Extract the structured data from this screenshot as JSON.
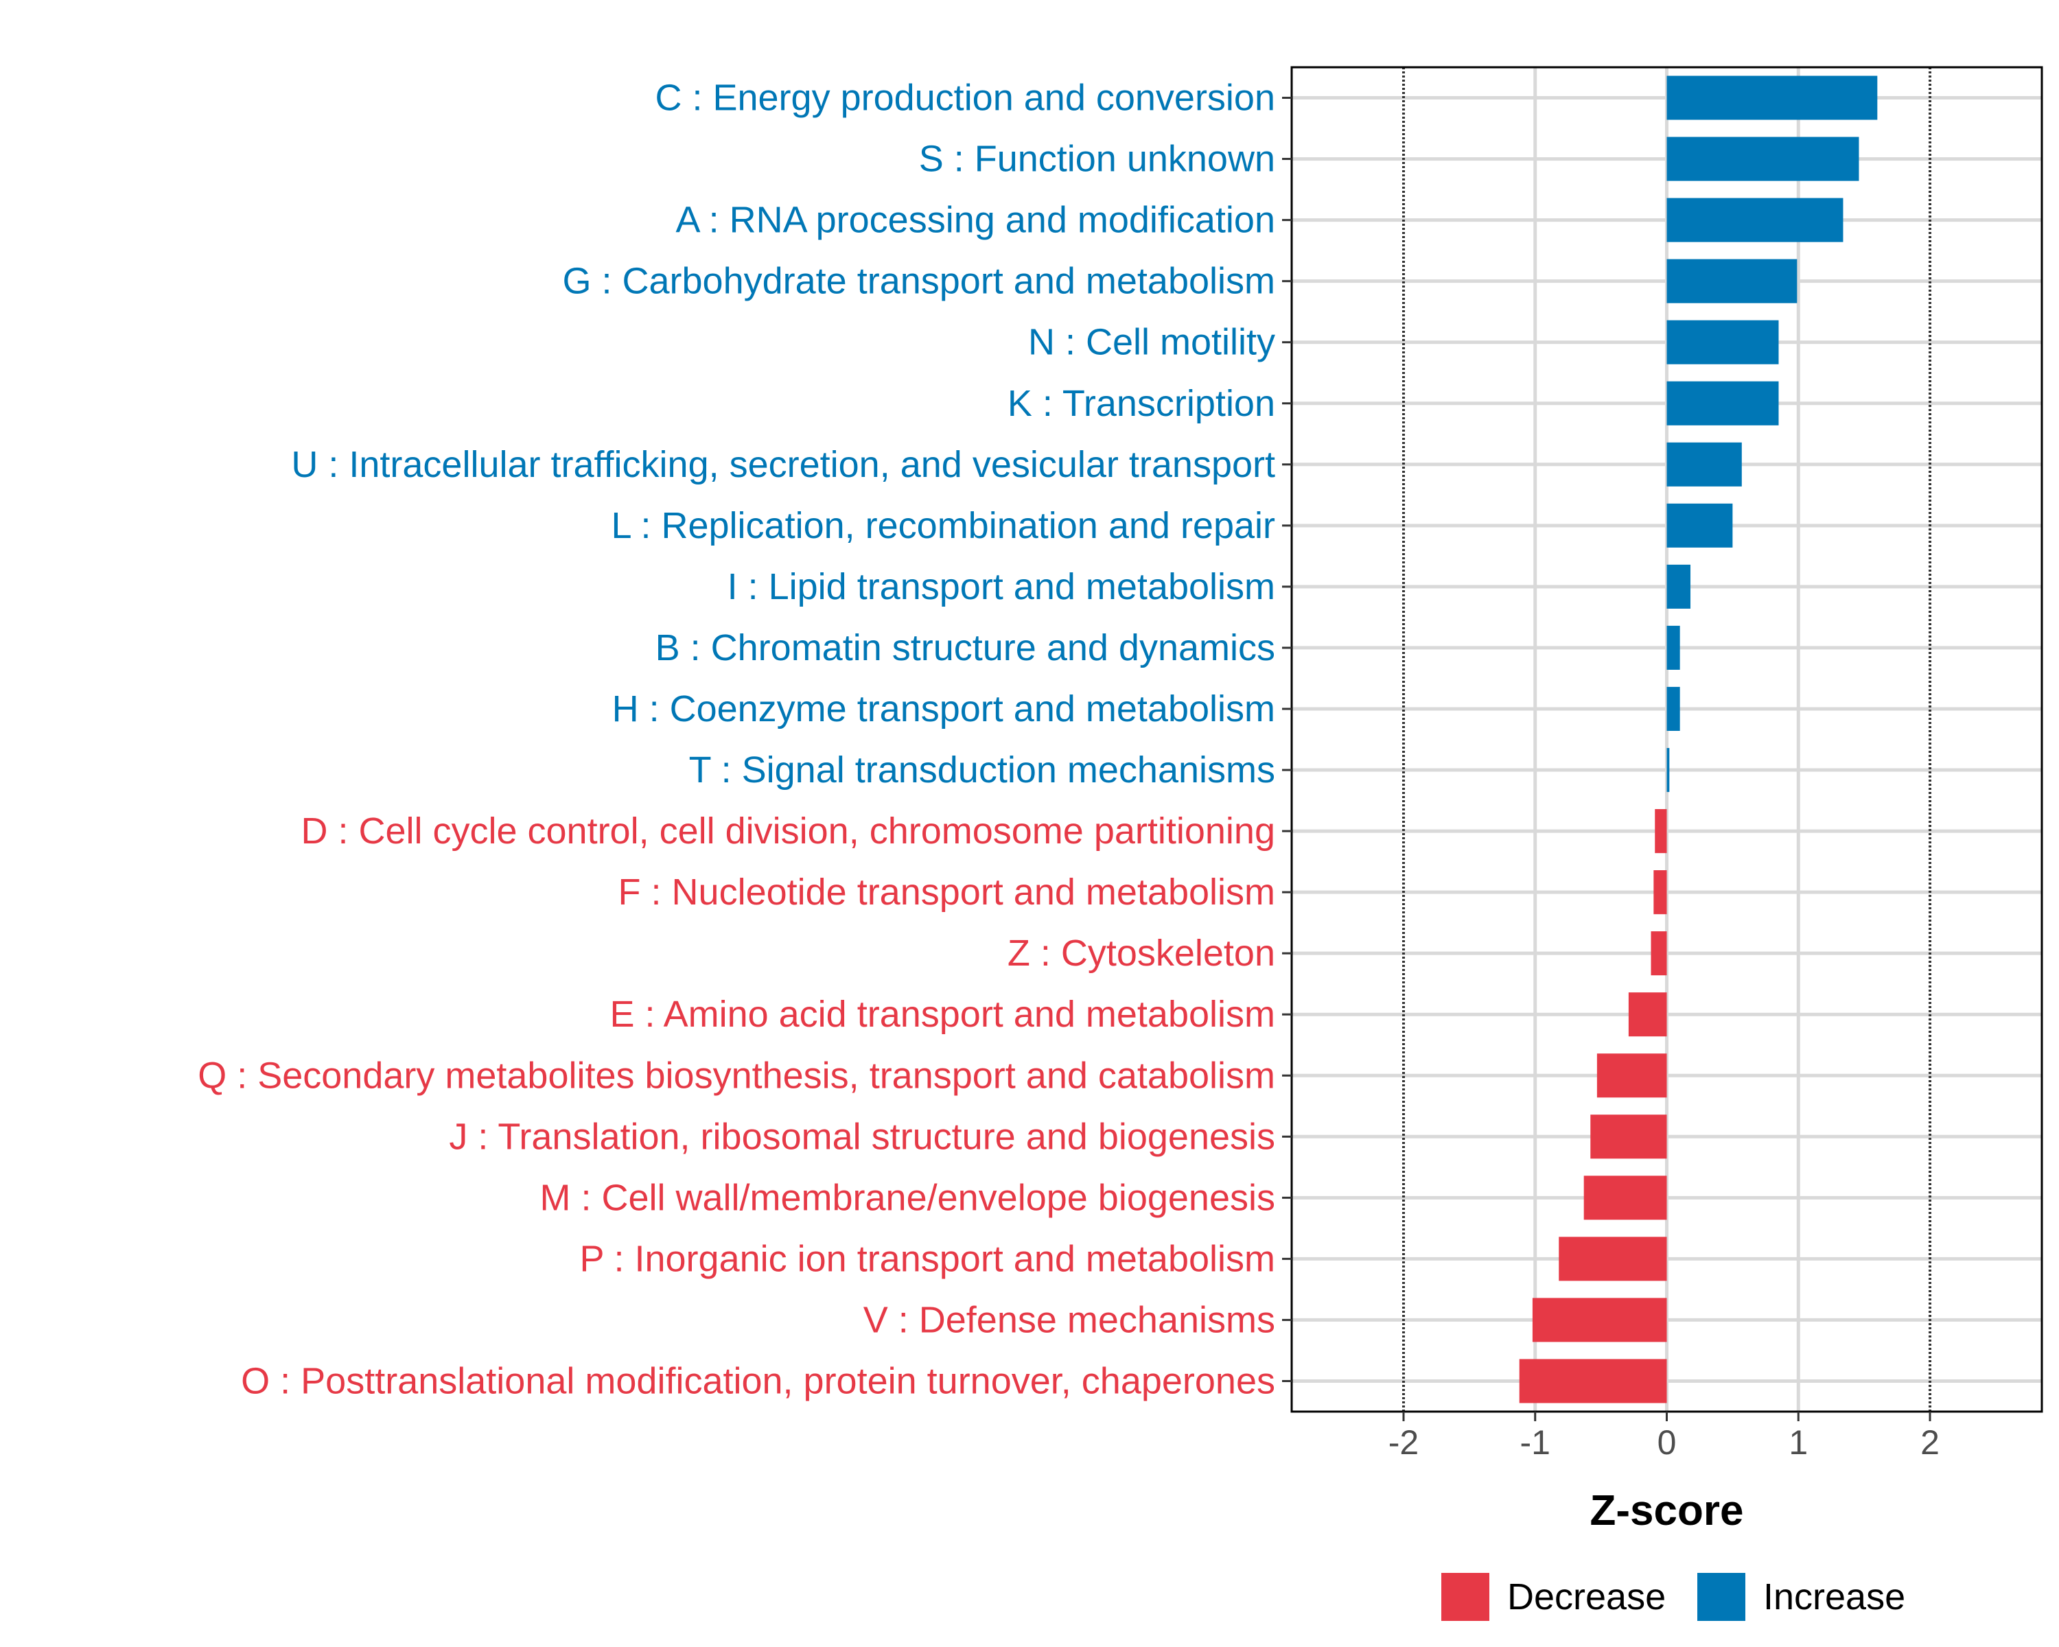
{
  "chart_data": {
    "type": "bar",
    "orientation": "horizontal",
    "xlabel": "Z-score",
    "xlim": [
      -2.85,
      2.85
    ],
    "xticks": [
      "-2",
      "-1",
      "0",
      "1",
      "2"
    ],
    "xtick_values": [
      -2,
      -1,
      0,
      1,
      2
    ],
    "reference_lines": [
      -2,
      2
    ],
    "categories": [
      "C : Energy production and conversion",
      "S : Function unknown",
      "A : RNA processing and modification",
      "G : Carbohydrate transport and metabolism",
      "N : Cell motility",
      "K : Transcription",
      "U : Intracellular trafficking, secretion, and vesicular transport",
      "L : Replication, recombination and repair",
      "I : Lipid transport and metabolism",
      "B : Chromatin structure and dynamics",
      "H : Coenzyme transport and metabolism",
      "T : Signal transduction mechanisms",
      "D : Cell cycle control, cell division, chromosome partitioning",
      "F : Nucleotide transport and metabolism",
      "Z : Cytoskeleton",
      "E : Amino acid transport and metabolism",
      "Q : Secondary metabolites biosynthesis, transport and catabolism",
      "J : Translation, ribosomal structure and biogenesis",
      "M : Cell wall/membrane/envelope biogenesis",
      "P : Inorganic ion transport and metabolism",
      "V : Defense mechanisms",
      "O : Posttranslational modification, protein turnover, chaperones"
    ],
    "values": [
      1.6,
      1.46,
      1.34,
      0.99,
      0.85,
      0.85,
      0.57,
      0.5,
      0.18,
      0.1,
      0.1,
      0.02,
      -0.09,
      -0.1,
      -0.12,
      -0.29,
      -0.53,
      -0.58,
      -0.63,
      -0.82,
      -1.02,
      -1.12
    ],
    "groups": [
      "Increase",
      "Increase",
      "Increase",
      "Increase",
      "Increase",
      "Increase",
      "Increase",
      "Increase",
      "Increase",
      "Increase",
      "Increase",
      "Increase",
      "Decrease",
      "Decrease",
      "Decrease",
      "Decrease",
      "Decrease",
      "Decrease",
      "Decrease",
      "Decrease",
      "Decrease",
      "Decrease"
    ],
    "legend": [
      {
        "name": "Decrease",
        "color": "#e63946"
      },
      {
        "name": "Increase",
        "color": "#0077b6"
      }
    ],
    "legend_position": "bottom",
    "grid": true
  }
}
